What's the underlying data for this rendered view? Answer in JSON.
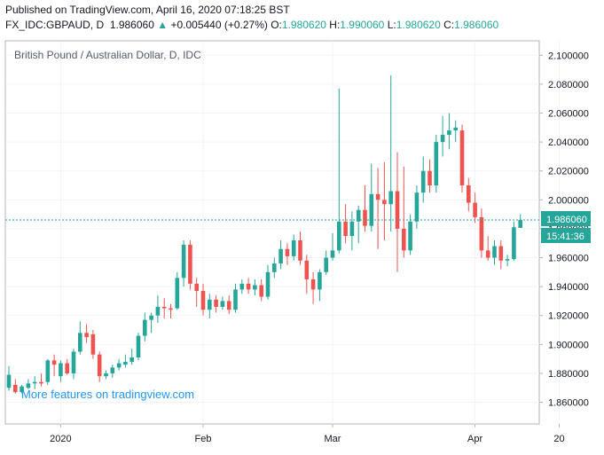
{
  "header": {
    "published": "Published on TradingView.com, April 16, 2020 07:18:25 BST",
    "symbol": "FX_IDC:GBPAUD, D",
    "last": "1.986060",
    "arrow": "▲",
    "change": "+0.005440 (+0.27%)",
    "o_label": "O:",
    "o": "1.980620",
    "h_label": "H:",
    "h": "1.990060",
    "l_label": "L:",
    "l": "1.980620",
    "c_label": "C:",
    "c": "1.986060"
  },
  "watermark": "More features on tradingview.com",
  "price_tag": {
    "price": "1.986060",
    "countdown": "15:41:36"
  },
  "colors": {
    "up": "#26a69a",
    "down": "#ef5350",
    "grid": "#f0f3fa",
    "last_line": "#26a69a"
  },
  "chart_data": {
    "type": "candlestick",
    "title": "British Pound / Australian Dollar, D, IDC",
    "ylim": [
      1.845,
      2.11
    ],
    "y_ticks": [
      "1.860000",
      "1.880000",
      "1.900000",
      "1.920000",
      "1.940000",
      "1.960000",
      "1.980000",
      "2.000000",
      "2.020000",
      "2.040000",
      "2.060000",
      "2.080000",
      "2.100000"
    ],
    "x_ticks": [
      {
        "label": "2020",
        "index": 8
      },
      {
        "label": "Feb",
        "index": 30
      },
      {
        "label": "Mar",
        "index": 50
      },
      {
        "label": "Apr",
        "index": 72
      },
      {
        "label": "20",
        "index": 85
      }
    ],
    "last_price": 1.98606,
    "candles": [
      {
        "o": 1.87,
        "h": 1.885,
        "l": 1.868,
        "c": 1.879
      },
      {
        "o": 1.872,
        "h": 1.876,
        "l": 1.866,
        "c": 1.867
      },
      {
        "o": 1.867,
        "h": 1.872,
        "l": 1.866,
        "c": 1.871
      },
      {
        "o": 1.87,
        "h": 1.876,
        "l": 1.869,
        "c": 1.873
      },
      {
        "o": 1.873,
        "h": 1.878,
        "l": 1.869,
        "c": 1.874
      },
      {
        "o": 1.874,
        "h": 1.88,
        "l": 1.871,
        "c": 1.873
      },
      {
        "o": 1.874,
        "h": 1.89,
        "l": 1.872,
        "c": 1.889
      },
      {
        "o": 1.889,
        "h": 1.893,
        "l": 1.878,
        "c": 1.886
      },
      {
        "o": 1.878,
        "h": 1.889,
        "l": 1.874,
        "c": 1.887
      },
      {
        "o": 1.887,
        "h": 1.89,
        "l": 1.879,
        "c": 1.88
      },
      {
        "o": 1.88,
        "h": 1.897,
        "l": 1.876,
        "c": 1.895
      },
      {
        "o": 1.895,
        "h": 1.916,
        "l": 1.893,
        "c": 1.908
      },
      {
        "o": 1.908,
        "h": 1.914,
        "l": 1.901,
        "c": 1.905
      },
      {
        "o": 1.907,
        "h": 1.91,
        "l": 1.89,
        "c": 1.893
      },
      {
        "o": 1.893,
        "h": 1.895,
        "l": 1.874,
        "c": 1.878
      },
      {
        "o": 1.878,
        "h": 1.882,
        "l": 1.876,
        "c": 1.88
      },
      {
        "o": 1.88,
        "h": 1.886,
        "l": 1.877,
        "c": 1.884
      },
      {
        "o": 1.884,
        "h": 1.89,
        "l": 1.882,
        "c": 1.887
      },
      {
        "o": 1.886,
        "h": 1.893,
        "l": 1.884,
        "c": 1.888
      },
      {
        "o": 1.888,
        "h": 1.897,
        "l": 1.886,
        "c": 1.891
      },
      {
        "o": 1.891,
        "h": 1.908,
        "l": 1.889,
        "c": 1.906
      },
      {
        "o": 1.906,
        "h": 1.922,
        "l": 1.902,
        "c": 1.917
      },
      {
        "o": 1.917,
        "h": 1.922,
        "l": 1.908,
        "c": 1.92
      },
      {
        "o": 1.92,
        "h": 1.934,
        "l": 1.915,
        "c": 1.926
      },
      {
        "o": 1.926,
        "h": 1.932,
        "l": 1.918,
        "c": 1.925
      },
      {
        "o": 1.925,
        "h": 1.928,
        "l": 1.918,
        "c": 1.924
      },
      {
        "o": 1.925,
        "h": 1.95,
        "l": 1.924,
        "c": 1.946
      },
      {
        "o": 1.946,
        "h": 1.972,
        "l": 1.94,
        "c": 1.969
      },
      {
        "o": 1.969,
        "h": 1.972,
        "l": 1.938,
        "c": 1.942
      },
      {
        "o": 1.942,
        "h": 1.946,
        "l": 1.926,
        "c": 1.937
      },
      {
        "o": 1.937,
        "h": 1.942,
        "l": 1.92,
        "c": 1.924
      },
      {
        "o": 1.924,
        "h": 1.935,
        "l": 1.918,
        "c": 1.931
      },
      {
        "o": 1.931,
        "h": 1.934,
        "l": 1.922,
        "c": 1.926
      },
      {
        "o": 1.926,
        "h": 1.933,
        "l": 1.924,
        "c": 1.93
      },
      {
        "o": 1.93,
        "h": 1.934,
        "l": 1.921,
        "c": 1.924
      },
      {
        "o": 1.924,
        "h": 1.942,
        "l": 1.922,
        "c": 1.938
      },
      {
        "o": 1.938,
        "h": 1.945,
        "l": 1.935,
        "c": 1.942
      },
      {
        "o": 1.942,
        "h": 1.946,
        "l": 1.935,
        "c": 1.938
      },
      {
        "o": 1.938,
        "h": 1.945,
        "l": 1.934,
        "c": 1.941
      },
      {
        "o": 1.941,
        "h": 1.945,
        "l": 1.93,
        "c": 1.933
      },
      {
        "o": 1.933,
        "h": 1.955,
        "l": 1.931,
        "c": 1.95
      },
      {
        "o": 1.95,
        "h": 1.96,
        "l": 1.946,
        "c": 1.956
      },
      {
        "o": 1.956,
        "h": 1.972,
        "l": 1.952,
        "c": 1.966
      },
      {
        "o": 1.966,
        "h": 1.97,
        "l": 1.955,
        "c": 1.961
      },
      {
        "o": 1.961,
        "h": 1.976,
        "l": 1.958,
        "c": 1.972
      },
      {
        "o": 1.972,
        "h": 1.978,
        "l": 1.955,
        "c": 1.958
      },
      {
        "o": 1.958,
        "h": 1.962,
        "l": 1.935,
        "c": 1.945
      },
      {
        "o": 1.945,
        "h": 1.95,
        "l": 1.928,
        "c": 1.938
      },
      {
        "o": 1.938,
        "h": 1.952,
        "l": 1.93,
        "c": 1.95
      },
      {
        "o": 1.95,
        "h": 1.965,
        "l": 1.948,
        "c": 1.96
      },
      {
        "o": 1.96,
        "h": 1.977,
        "l": 1.958,
        "c": 1.965
      },
      {
        "o": 1.965,
        "h": 2.077,
        "l": 1.963,
        "c": 1.985
      },
      {
        "o": 1.985,
        "h": 1.997,
        "l": 1.97,
        "c": 1.975
      },
      {
        "o": 1.975,
        "h": 1.992,
        "l": 1.965,
        "c": 1.985
      },
      {
        "o": 1.985,
        "h": 1.996,
        "l": 1.97,
        "c": 1.993
      },
      {
        "o": 1.993,
        "h": 2.01,
        "l": 1.978,
        "c": 1.982
      },
      {
        "o": 1.982,
        "h": 2.025,
        "l": 1.978,
        "c": 2.004
      },
      {
        "o": 2.004,
        "h": 2.022,
        "l": 1.966,
        "c": 2.0
      },
      {
        "o": 2.0,
        "h": 2.026,
        "l": 1.972,
        "c": 1.997
      },
      {
        "o": 1.997,
        "h": 2.086,
        "l": 1.978,
        "c": 2.006
      },
      {
        "o": 2.006,
        "h": 2.033,
        "l": 1.95,
        "c": 1.98
      },
      {
        "o": 1.98,
        "h": 2.023,
        "l": 1.96,
        "c": 1.965
      },
      {
        "o": 1.965,
        "h": 1.99,
        "l": 1.962,
        "c": 1.985
      },
      {
        "o": 1.985,
        "h": 2.01,
        "l": 1.98,
        "c": 2.005
      },
      {
        "o": 2.005,
        "h": 2.03,
        "l": 1.998,
        "c": 2.02
      },
      {
        "o": 2.02,
        "h": 2.028,
        "l": 2.005,
        "c": 2.01
      },
      {
        "o": 2.01,
        "h": 2.045,
        "l": 2.005,
        "c": 2.04
      },
      {
        "o": 2.04,
        "h": 2.058,
        "l": 2.03,
        "c": 2.045
      },
      {
        "o": 2.045,
        "h": 2.06,
        "l": 2.035,
        "c": 2.048
      },
      {
        "o": 2.048,
        "h": 2.055,
        "l": 2.04,
        "c": 2.05
      },
      {
        "o": 2.048,
        "h": 2.052,
        "l": 2.005,
        "c": 2.01
      },
      {
        "o": 2.01,
        "h": 2.015,
        "l": 1.992,
        "c": 1.998
      },
      {
        "o": 1.998,
        "h": 2.005,
        "l": 1.984,
        "c": 1.988
      },
      {
        "o": 1.988,
        "h": 1.994,
        "l": 1.96,
        "c": 1.965
      },
      {
        "o": 1.965,
        "h": 1.975,
        "l": 1.958,
        "c": 1.96
      },
      {
        "o": 1.96,
        "h": 1.972,
        "l": 1.955,
        "c": 1.968
      },
      {
        "o": 1.968,
        "h": 1.972,
        "l": 1.952,
        "c": 1.958
      },
      {
        "o": 1.958,
        "h": 1.962,
        "l": 1.954,
        "c": 1.959
      },
      {
        "o": 1.959,
        "h": 1.985,
        "l": 1.958,
        "c": 1.981
      },
      {
        "o": 1.98062,
        "h": 1.99006,
        "l": 1.98062,
        "c": 1.98606
      }
    ]
  }
}
